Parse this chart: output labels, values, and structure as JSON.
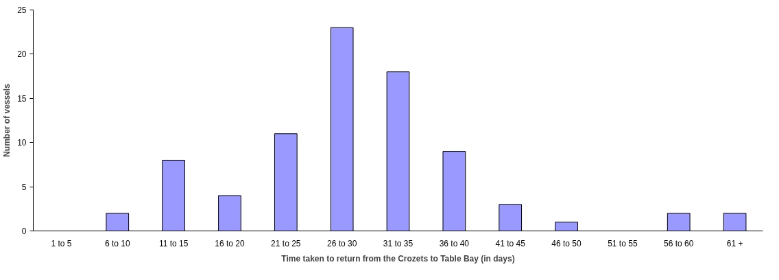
{
  "chart_data": {
    "type": "bar",
    "xlabel": "Time taken to return from the Crozets to Table Bay (in days)",
    "ylabel": "Number of vessels",
    "categories": [
      "1 to 5",
      "6 to 10",
      "11 to 15",
      "16 to 20",
      "21 to 25",
      "26 to 30",
      "31 to 35",
      "36 to 40",
      "41 to 45",
      "46 to 50",
      "51 to 55",
      "56 to 60",
      "61 +"
    ],
    "values": [
      0,
      2,
      8,
      4,
      11,
      23,
      18,
      9,
      3,
      1,
      0,
      2,
      2
    ],
    "color": "#9999ff",
    "ylim": [
      0,
      25
    ],
    "yticks": [
      0,
      5,
      10,
      15,
      20,
      25
    ],
    "grid": false
  }
}
